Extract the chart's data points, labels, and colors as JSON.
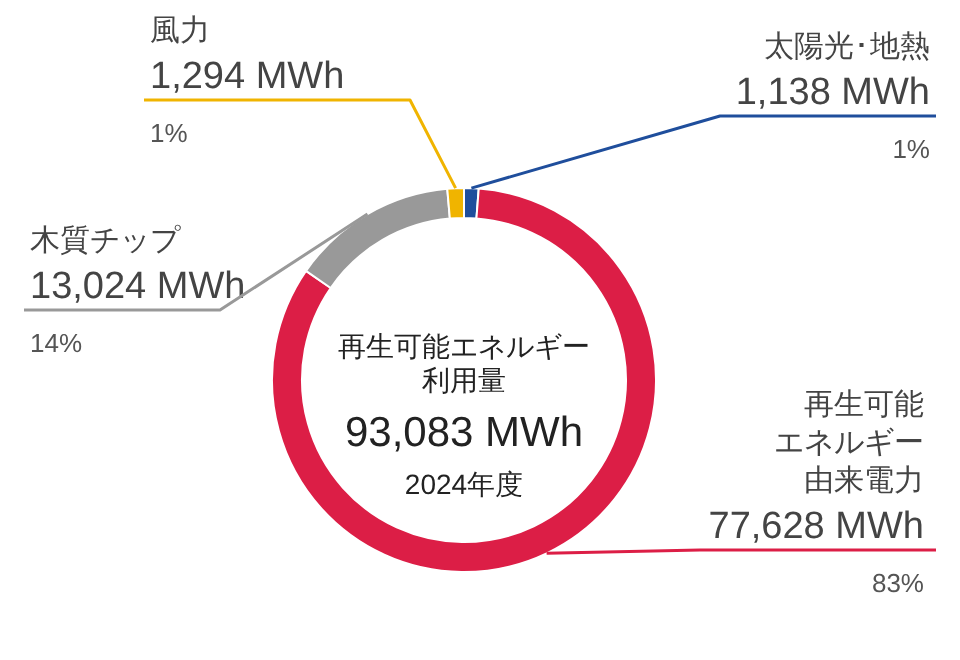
{
  "chart_data": {
    "type": "donut",
    "title": "再生可能エネルギー利用量",
    "subtitle": "2024年度",
    "categories": [
      "太陽光･地熱",
      "再生可能エネルギー由来電力",
      "木質チップ",
      "風力"
    ],
    "values": [
      1138,
      77628,
      13024,
      1294
    ],
    "value_labels": [
      "1,138 MWh",
      "77,628 MWh",
      "13,024 MWh",
      "1,294 MWh"
    ],
    "colors": [
      "#1f4e9c",
      "#dc1e46",
      "#999999",
      "#f0b400"
    ],
    "annotations": [
      "93,083 MWh",
      {
        "text": "1%",
        "x": "太陽光･地熱"
      },
      {
        "text": "83%",
        "x": "再生可能エネルギー由来電力"
      },
      {
        "text": "14%",
        "x": "木質チップ"
      },
      {
        "text": "1%",
        "x": "風力"
      }
    ]
  }
}
